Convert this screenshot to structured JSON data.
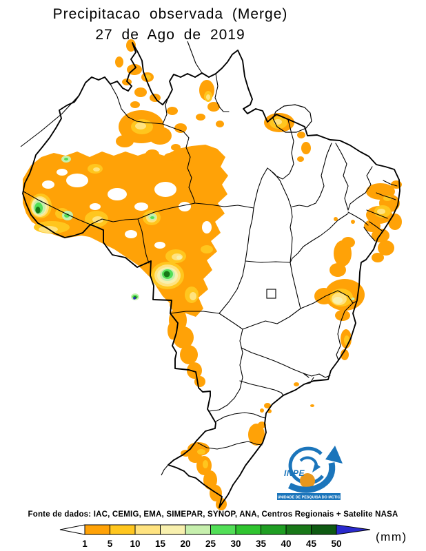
{
  "title": {
    "line1": "Precipitacao observada (Merge)",
    "line2": "27 de Ago de 2019"
  },
  "source_line": "Fonte de dados: IAC, CEMIG, EMA, SIMEPAR, SYNOP, ANA, Centros Regionais + Satelite NASA",
  "legend": {
    "unit_label": "(mm)",
    "tick_labels": [
      "1",
      "5",
      "10",
      "15",
      "20",
      "25",
      "30",
      "35",
      "40",
      "45",
      "50"
    ],
    "colors": [
      "#FFA207",
      "#FFC61E",
      "#FFE380",
      "#F8F0AE",
      "#C6EFAD",
      "#52DF57",
      "#2FC42F",
      "#1F9E23",
      "#187818",
      "#0E5A12"
    ],
    "underflow_color": "#FFFFFF",
    "overflow_color": "#2A2ACD",
    "outline_color": "#000000"
  },
  "map": {
    "border_color": "#000000",
    "background": "#FFFFFF"
  },
  "logo": {
    "acronym": "INPE",
    "banner": "UNIDADE DE PESQUISA DO MCTIC",
    "blue": "#1B75BB",
    "orange": "#E8971D"
  }
}
